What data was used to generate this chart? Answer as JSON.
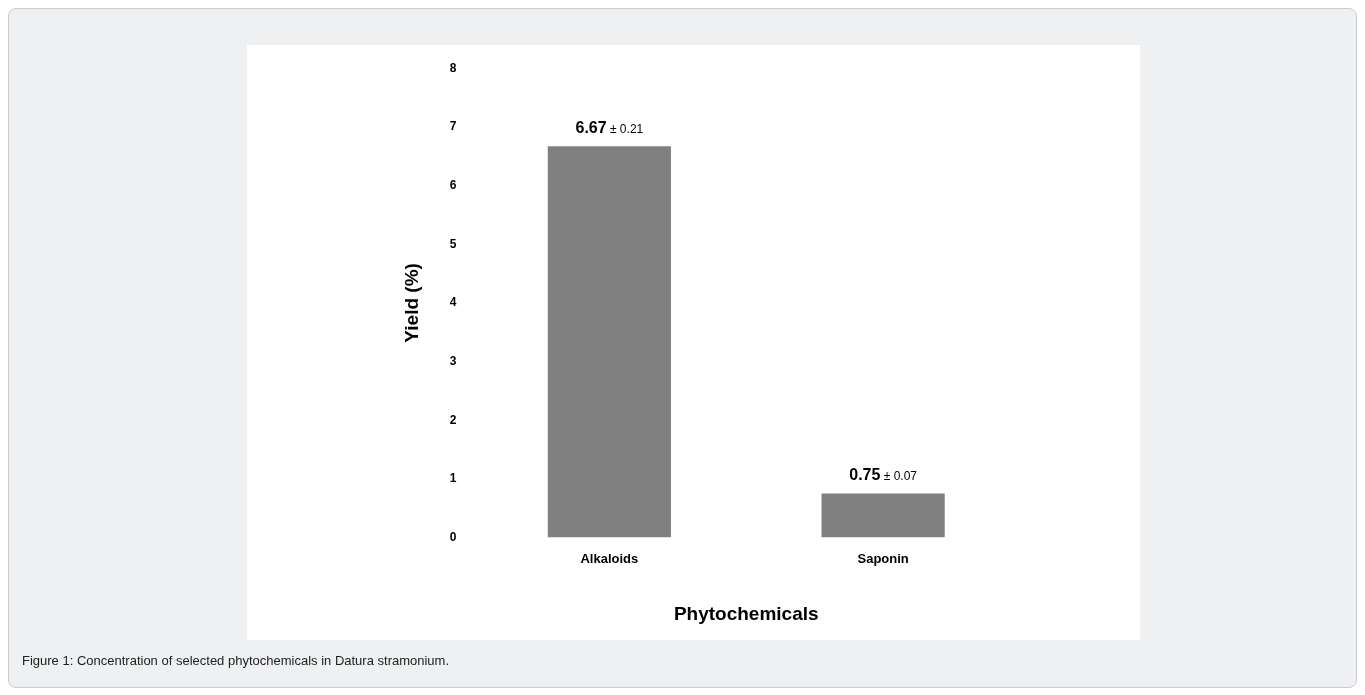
{
  "chart_data": {
    "type": "bar",
    "categories": [
      "Alkaloids",
      "Saponin"
    ],
    "values": [
      6.67,
      0.75
    ],
    "color": "#808080",
    "value_labels": [
      "6.67 ± 0.21",
      "0.75 ± 0.07"
    ],
    "xlabel": "Phytochemicals",
    "ylabel": "Yield (%)",
    "ylim": [
      0,
      8
    ],
    "yticks": [
      0,
      1,
      2,
      3,
      4,
      5,
      6,
      7,
      8
    ],
    "grid": false,
    "legend": false,
    "annotations": [
      "Figure 1: Concentration of selected phytochemicals in Datura stramonium."
    ]
  }
}
